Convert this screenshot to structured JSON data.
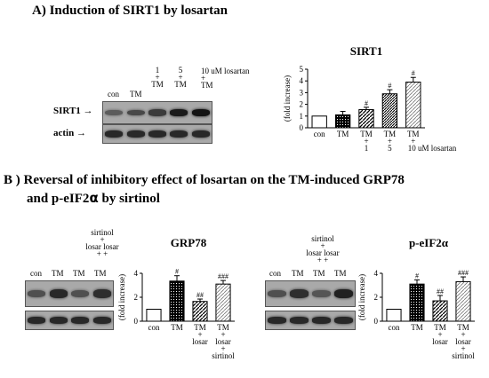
{
  "panel_a": {
    "title": "A) Induction of SIRT1 by losartan",
    "blot": {
      "top_labels": [
        {
          "top": "1",
          "plus": "+",
          "bottom": "TM"
        },
        {
          "top": "5",
          "plus": "+",
          "bottom": "TM"
        }
      ],
      "losartan_label": "10 uM losartan",
      "lane_labels": [
        "con",
        "TM",
        "TM",
        "TM",
        "TM"
      ],
      "plus_marks": [
        "+",
        "+",
        "+"
      ],
      "row_labels": [
        "SIRT1",
        "actin"
      ],
      "arrow": "→",
      "sirt1_intensity": [
        0.45,
        0.6,
        0.7,
        0.95,
        1.0
      ],
      "actin_intensity": [
        0.85,
        0.85,
        0.85,
        0.85,
        0.85
      ]
    },
    "chart": {
      "title": "SIRT1",
      "ylabel": "(fold increase)",
      "yticks": [
        "0",
        "1",
        "2",
        "3",
        "4",
        "5"
      ],
      "xlabels": [
        [
          "con"
        ],
        [
          "TM"
        ],
        [
          "TM",
          "+",
          "1"
        ],
        [
          "TM",
          "+",
          "5"
        ],
        [
          "TM",
          "+",
          "10 uM losartan"
        ]
      ],
      "sig": [
        "",
        "",
        "#",
        "#",
        "#"
      ]
    }
  },
  "panel_b": {
    "title_line1": "B ) Reversal of  inhibitory effect of losartan on the TM-induced GRP78",
    "title_line2_pre": "and  p-eIF2",
    "title_line2_alpha": "α",
    "title_line2_post": " by sirtinol",
    "left_blot": {
      "lane_labels": [
        "con",
        "TM",
        "TM",
        "TM"
      ],
      "stack_lines": [
        "sirtinol",
        "+",
        "losar losar",
        "+    +"
      ],
      "band_intensity": [
        0.55,
        0.85,
        0.55,
        0.8
      ],
      "actin_intensity": [
        0.85,
        0.85,
        0.85,
        0.85
      ]
    },
    "right_blot": {
      "lane_labels": [
        "con",
        "TM",
        "TM",
        "TM"
      ],
      "stack_lines": [
        "sirtinol",
        "+",
        "losar losar",
        "+    +"
      ],
      "band_intensity": [
        0.55,
        0.8,
        0.5,
        0.9
      ],
      "actin_intensity": [
        0.85,
        0.85,
        0.85,
        0.85
      ]
    },
    "charts": [
      {
        "title": "GRP78",
        "ylabel": "(fold increase)",
        "yticks": [
          "0",
          "2",
          "4"
        ],
        "xlabels": [
          [
            "con"
          ],
          [
            "TM"
          ],
          [
            "TM",
            "+",
            "losar"
          ],
          [
            "TM",
            "+",
            "losar",
            "+",
            "sirtinol"
          ]
        ],
        "sig": [
          "",
          "#",
          "##",
          "###"
        ]
      },
      {
        "title": "p-eIF2α",
        "ylabel": "(fold increase)",
        "yticks": [
          "0",
          "2",
          "4"
        ],
        "xlabels": [
          [
            "con"
          ],
          [
            "TM"
          ],
          [
            "TM",
            "+",
            "losar"
          ],
          [
            "TM",
            "+",
            "losar",
            "+",
            "sirtinol"
          ]
        ],
        "sig": [
          "",
          "#",
          "##",
          "###"
        ]
      }
    ]
  },
  "chart_data": [
    {
      "type": "bar",
      "title": "SIRT1",
      "ylabel": "(fold increase)",
      "categories": [
        "con",
        "TM",
        "TM + 1",
        "TM + 5",
        "TM + 10 uM losartan"
      ],
      "values": [
        1.0,
        1.1,
        1.55,
        2.9,
        3.9
      ],
      "errors": [
        0.0,
        0.3,
        0.2,
        0.35,
        0.4
      ],
      "patterns": [
        "white",
        "black-dots",
        "diagonal",
        "diagonal-dense",
        "light-diagonal"
      ],
      "ylim": [
        0,
        5
      ]
    },
    {
      "type": "bar",
      "title": "GRP78",
      "ylabel": "(fold increase)",
      "categories": [
        "con",
        "TM",
        "TM + losar",
        "TM + losar + sirtinol"
      ],
      "values": [
        1.0,
        3.35,
        1.65,
        3.1
      ],
      "errors": [
        0.0,
        0.45,
        0.2,
        0.3
      ],
      "patterns": [
        "white",
        "black-dots",
        "diagonal",
        "light-diagonal"
      ],
      "ylim": [
        0,
        4
      ]
    },
    {
      "type": "bar",
      "title": "p-eIF2α",
      "ylabel": "(fold increase)",
      "categories": [
        "con",
        "TM",
        "TM + losar",
        "TM + losar + sirtinol"
      ],
      "values": [
        1.0,
        3.1,
        1.7,
        3.3
      ],
      "errors": [
        0.0,
        0.35,
        0.45,
        0.4
      ],
      "patterns": [
        "white",
        "black-dots",
        "diagonal",
        "light-diagonal"
      ],
      "ylim": [
        0,
        4
      ]
    }
  ]
}
